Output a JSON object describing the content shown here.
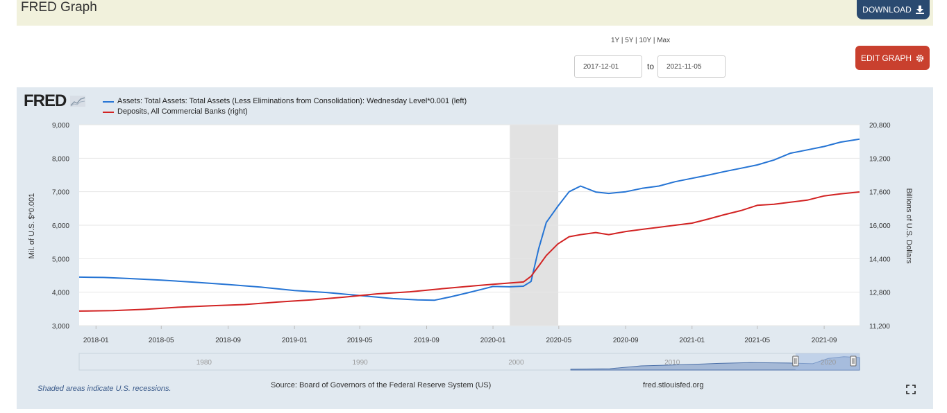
{
  "header": {
    "title": "FRED Graph",
    "download_label": "DOWNLOAD",
    "download_icon": "download-icon"
  },
  "controls": {
    "range_links": [
      "1Y",
      "5Y",
      "10Y",
      "Max"
    ],
    "range_separator": " | ",
    "start_date": "2017-12-01",
    "to_label": "to",
    "end_date": "2021-11-05",
    "edit_label": "EDIT GRAPH",
    "edit_icon": "gear-icon"
  },
  "graph": {
    "logo_text": "FRED",
    "logo_icon": "chart-line-icon",
    "recession_note": "Shaded areas indicate U.S. recessions.",
    "source": "Source: Board of Governors of the Federal Reserve System (US)",
    "site": "fred.stlouisfed.org",
    "fullscreen_icon": "fullscreen-icon",
    "colors": {
      "assets": "#2574d4",
      "deposits": "#d22323",
      "recession": "#e2e2e2",
      "background": "#e1e9f0"
    }
  },
  "chart_data": {
    "type": "line",
    "xlabel": "",
    "ylabel_left": "Mil. of U.S. $*0.001",
    "ylabel_right": "Billions of U.S. Dollars",
    "x_range": [
      "2017-12-01",
      "2021-11-05"
    ],
    "left_ylim": [
      3000,
      9000
    ],
    "right_ylim": [
      11200,
      20800
    ],
    "left_ticks": [
      "3,000",
      "4,000",
      "5,000",
      "6,000",
      "7,000",
      "8,000",
      "9,000"
    ],
    "left_tick_values": [
      3000,
      4000,
      5000,
      6000,
      7000,
      8000,
      9000
    ],
    "right_ticks": [
      "11,200",
      "12,800",
      "14,400",
      "16,000",
      "17,600",
      "19,200",
      "20,800"
    ],
    "right_tick_values": [
      11200,
      12800,
      14400,
      16000,
      17600,
      19200,
      20800
    ],
    "x_ticks": [
      "2018-01",
      "2018-05",
      "2018-09",
      "2019-01",
      "2019-05",
      "2019-09",
      "2020-01",
      "2020-05",
      "2020-09",
      "2021-01",
      "2021-05",
      "2021-09"
    ],
    "x_tick_dates": [
      "2018-01-01",
      "2018-05-01",
      "2018-09-01",
      "2019-01-01",
      "2019-05-01",
      "2019-09-01",
      "2020-01-01",
      "2020-05-01",
      "2020-09-01",
      "2021-01-01",
      "2021-05-01",
      "2021-09-01"
    ],
    "grid": true,
    "legend_position": "top-left",
    "recessions": [
      {
        "start": "2020-02-01",
        "end": "2020-04-30"
      }
    ],
    "navigator": {
      "labels": [
        "1980",
        "1990",
        "2000",
        "2010",
        "2020"
      ],
      "label_years": [
        1980,
        1990,
        2000,
        2010,
        2020
      ]
    },
    "series": [
      {
        "name": "Assets: Total Assets: Total Assets (Less Eliminations from Consolidation): Wednesday Level*0.001 (left)",
        "axis": "left",
        "points": [
          [
            "2017-12-01",
            4450
          ],
          [
            "2018-01-15",
            4440
          ],
          [
            "2018-03-01",
            4410
          ],
          [
            "2018-05-01",
            4360
          ],
          [
            "2018-07-01",
            4300
          ],
          [
            "2018-09-01",
            4230
          ],
          [
            "2018-11-01",
            4150
          ],
          [
            "2019-01-01",
            4050
          ],
          [
            "2019-03-01",
            3990
          ],
          [
            "2019-05-01",
            3900
          ],
          [
            "2019-07-01",
            3810
          ],
          [
            "2019-08-15",
            3770
          ],
          [
            "2019-09-15",
            3760
          ],
          [
            "2019-10-15",
            3860
          ],
          [
            "2019-11-15",
            3980
          ],
          [
            "2019-12-15",
            4100
          ],
          [
            "2020-01-01",
            4170
          ],
          [
            "2020-02-01",
            4160
          ],
          [
            "2020-02-26",
            4180
          ],
          [
            "2020-03-11",
            4320
          ],
          [
            "2020-03-25",
            5300
          ],
          [
            "2020-04-08",
            6080
          ],
          [
            "2020-04-29",
            6560
          ],
          [
            "2020-05-20",
            7000
          ],
          [
            "2020-06-10",
            7170
          ],
          [
            "2020-07-08",
            6990
          ],
          [
            "2020-08-01",
            6950
          ],
          [
            "2020-09-01",
            7000
          ],
          [
            "2020-10-01",
            7100
          ],
          [
            "2020-11-01",
            7170
          ],
          [
            "2020-12-01",
            7300
          ],
          [
            "2021-01-01",
            7400
          ],
          [
            "2021-02-01",
            7500
          ],
          [
            "2021-03-01",
            7600
          ],
          [
            "2021-04-01",
            7700
          ],
          [
            "2021-05-01",
            7800
          ],
          [
            "2021-06-01",
            7950
          ],
          [
            "2021-07-01",
            8150
          ],
          [
            "2021-08-01",
            8250
          ],
          [
            "2021-09-01",
            8350
          ],
          [
            "2021-10-01",
            8480
          ],
          [
            "2021-11-05",
            8570
          ]
        ]
      },
      {
        "name": "Deposits, All Commercial Banks (right)",
        "axis": "right",
        "points": [
          [
            "2017-12-01",
            11900
          ],
          [
            "2018-02-01",
            11920
          ],
          [
            "2018-04-01",
            11980
          ],
          [
            "2018-06-01",
            12080
          ],
          [
            "2018-08-01",
            12150
          ],
          [
            "2018-10-01",
            12210
          ],
          [
            "2018-12-01",
            12330
          ],
          [
            "2019-02-01",
            12430
          ],
          [
            "2019-04-01",
            12560
          ],
          [
            "2019-06-01",
            12720
          ],
          [
            "2019-08-01",
            12820
          ],
          [
            "2019-10-01",
            12970
          ],
          [
            "2019-12-01",
            13110
          ],
          [
            "2020-01-01",
            13180
          ],
          [
            "2020-02-26",
            13290
          ],
          [
            "2020-03-11",
            13560
          ],
          [
            "2020-03-25",
            14050
          ],
          [
            "2020-04-08",
            14550
          ],
          [
            "2020-04-29",
            15100
          ],
          [
            "2020-05-20",
            15450
          ],
          [
            "2020-06-10",
            15550
          ],
          [
            "2020-07-08",
            15650
          ],
          [
            "2020-08-01",
            15550
          ],
          [
            "2020-09-01",
            15700
          ],
          [
            "2020-10-01",
            15800
          ],
          [
            "2020-11-01",
            15900
          ],
          [
            "2020-12-01",
            16000
          ],
          [
            "2021-01-01",
            16100
          ],
          [
            "2021-02-01",
            16300
          ],
          [
            "2021-03-01",
            16500
          ],
          [
            "2021-04-01",
            16700
          ],
          [
            "2021-05-01",
            16950
          ],
          [
            "2021-06-01",
            17000
          ],
          [
            "2021-07-01",
            17100
          ],
          [
            "2021-08-01",
            17200
          ],
          [
            "2021-09-01",
            17400
          ],
          [
            "2021-10-01",
            17500
          ],
          [
            "2021-11-05",
            17590
          ]
        ]
      }
    ]
  }
}
